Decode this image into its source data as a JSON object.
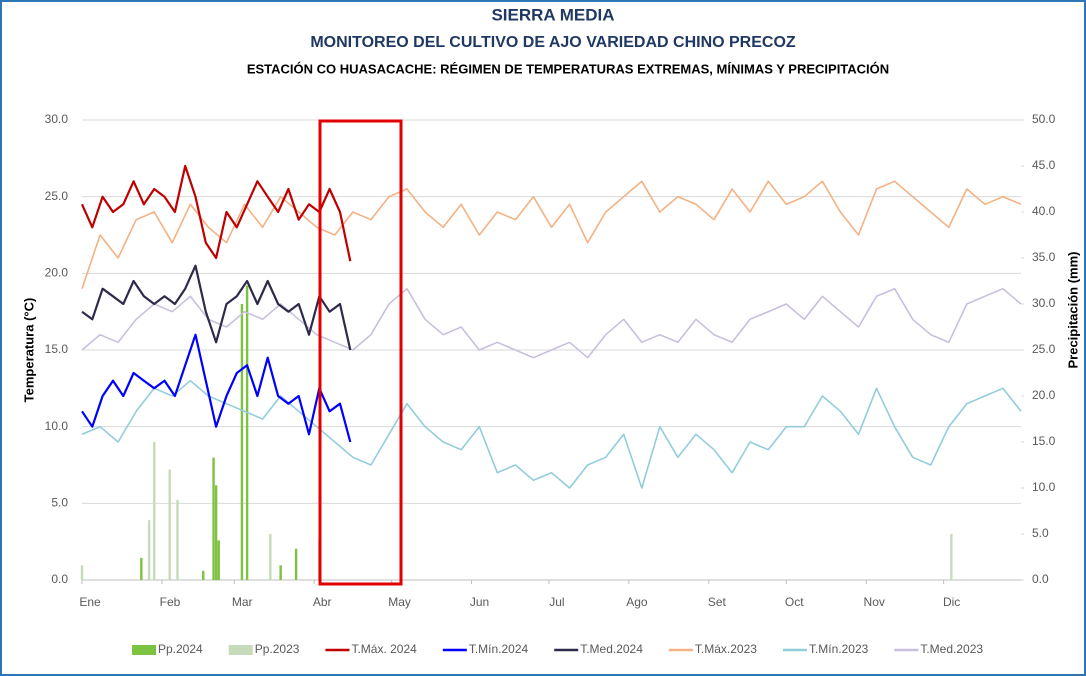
{
  "chart_data": {
    "type": "line",
    "title": "SIERRA MEDIA",
    "subtitle": "MONITOREO DEL CULTIVO DE AJO VARIEDAD CHINO PRECOZ",
    "subtitle2": "ESTACIÓN CO HUASACACHE: RÉGIMEN DE TEMPERATURAS EXTREMAS, MÍNIMAS Y PRECIPITACIÓN",
    "ylabel": "Temperatura (°C)",
    "y2label": "Precipitación (mm)",
    "xlim": [
      1,
      365
    ],
    "xticks": [
      {
        "value": 1,
        "label": "Ene"
      },
      {
        "value": 32,
        "label": "Feb"
      },
      {
        "value": 60,
        "label": "Mar"
      },
      {
        "value": 91,
        "label": "Abr"
      },
      {
        "value": 121,
        "label": "May"
      },
      {
        "value": 152,
        "label": "Jun"
      },
      {
        "value": 182,
        "label": "Jul"
      },
      {
        "value": 213,
        "label": "Ago"
      },
      {
        "value": 244,
        "label": "Set"
      },
      {
        "value": 274,
        "label": "Oct"
      },
      {
        "value": 305,
        "label": "Nov"
      },
      {
        "value": 335,
        "label": "Dic"
      }
    ],
    "ylim": [
      0,
      30
    ],
    "yticks": [
      {
        "value": 0,
        "label": "0.0"
      },
      {
        "value": 5,
        "label": "5.0"
      },
      {
        "value": 10,
        "label": "10.0"
      },
      {
        "value": 15,
        "label": "15.0"
      },
      {
        "value": 20,
        "label": "20.0"
      },
      {
        "value": 25,
        "label": "25.0"
      },
      {
        "value": 30,
        "label": "30.0"
      }
    ],
    "y2lim": [
      0,
      50
    ],
    "y2ticks": [
      {
        "value": 0,
        "label": "0.0"
      },
      {
        "value": 5,
        "label": "5.0"
      },
      {
        "value": 10,
        "label": "10.0"
      },
      {
        "value": 15,
        "label": "15.0"
      },
      {
        "value": 20,
        "label": "20.0"
      },
      {
        "value": 25,
        "label": "25.0"
      },
      {
        "value": 30,
        "label": "30.0"
      },
      {
        "value": 35,
        "label": "35.0"
      },
      {
        "value": 40,
        "label": "40.0"
      },
      {
        "value": 45,
        "label": "45.0"
      },
      {
        "value": 50,
        "label": "50.0"
      }
    ],
    "grid": true,
    "legend": "bottom",
    "series": [
      {
        "name": "Pp.2024",
        "type": "bar",
        "axis": "y2",
        "color": "#7dc242",
        "x": [
          24,
          48,
          52,
          53,
          54,
          63,
          65,
          78,
          84
        ],
        "values": [
          2.4,
          1,
          13.3,
          10.3,
          4.3,
          30,
          32,
          1.6,
          3.4
        ]
      },
      {
        "name": "Pp.2023",
        "type": "bar",
        "axis": "y2",
        "color": "#c5dbb9",
        "x": [
          1,
          27,
          29,
          35,
          38,
          74,
          93,
          338
        ],
        "values": [
          1.6,
          6.5,
          15,
          12,
          8.7,
          5,
          4.3,
          5
        ]
      },
      {
        "name": "T.Máx. 2024",
        "type": "line",
        "color": "#c00000",
        "x": [
          1,
          5,
          9,
          13,
          17,
          21,
          25,
          29,
          33,
          37,
          41,
          45,
          49,
          53,
          57,
          61,
          65,
          69,
          73,
          77,
          81,
          85,
          89,
          93,
          97,
          101,
          105
        ],
        "values": [
          24.5,
          23,
          25,
          24,
          24.5,
          26,
          24.5,
          25.5,
          25,
          24,
          27,
          25,
          22,
          21,
          24,
          23,
          24.5,
          26,
          25,
          24,
          25.5,
          23.5,
          24.5,
          24,
          25.5,
          24,
          20.8
        ]
      },
      {
        "name": "T.Mín.2024",
        "type": "line",
        "color": "#0000ff",
        "x": [
          1,
          5,
          9,
          13,
          17,
          21,
          25,
          29,
          33,
          37,
          41,
          45,
          49,
          53,
          57,
          61,
          65,
          69,
          73,
          77,
          81,
          85,
          89,
          93,
          97,
          101,
          105
        ],
        "values": [
          11,
          10,
          12,
          13,
          12,
          13.5,
          13,
          12.5,
          13,
          12,
          14,
          16,
          13,
          10,
          12,
          13.5,
          14,
          12,
          14.5,
          12,
          11.5,
          12,
          9.5,
          12.5,
          11,
          11.5,
          9
        ]
      },
      {
        "name": "T.Med.2024",
        "type": "line",
        "color": "#2e2a4a",
        "x": [
          1,
          5,
          9,
          13,
          17,
          21,
          25,
          29,
          33,
          37,
          41,
          45,
          49,
          53,
          57,
          61,
          65,
          69,
          73,
          77,
          81,
          85,
          89,
          93,
          97,
          101,
          105
        ],
        "values": [
          17.5,
          17,
          19,
          18.5,
          18,
          19.5,
          18.5,
          18,
          18.5,
          18,
          19,
          20.5,
          17.5,
          15.5,
          18,
          18.5,
          19.5,
          18,
          19.5,
          18,
          17.5,
          18,
          16,
          18.5,
          17.5,
          18,
          15
        ]
      },
      {
        "name": "T.Máx.2023",
        "type": "line",
        "color": "#f4b183",
        "x": [
          1,
          8,
          15,
          22,
          29,
          36,
          43,
          50,
          57,
          64,
          71,
          78,
          85,
          92,
          99,
          106,
          113,
          120,
          127,
          134,
          141,
          148,
          155,
          162,
          169,
          176,
          183,
          190,
          197,
          204,
          211,
          218,
          225,
          232,
          239,
          246,
          253,
          260,
          267,
          274,
          281,
          288,
          295,
          302,
          309,
          316,
          323,
          330,
          337,
          344,
          351,
          358,
          365
        ],
        "values": [
          19,
          22.5,
          21,
          23.5,
          24,
          22,
          24.5,
          23,
          22,
          24.5,
          23,
          25,
          24,
          23,
          22.5,
          24,
          23.5,
          25,
          25.5,
          24,
          23,
          24.5,
          22.5,
          24,
          23.5,
          25,
          23,
          24.5,
          22,
          24,
          25,
          26,
          24,
          25,
          24.5,
          23.5,
          25.5,
          24,
          26,
          24.5,
          25,
          26,
          24,
          22.5,
          25.5,
          26,
          25,
          24,
          23,
          25.5,
          24.5,
          25,
          24.5
        ]
      },
      {
        "name": "T.Mín.2023",
        "type": "line",
        "color": "#92cddc",
        "x": [
          1,
          8,
          15,
          22,
          29,
          36,
          43,
          50,
          57,
          64,
          71,
          78,
          85,
          92,
          99,
          106,
          113,
          120,
          127,
          134,
          141,
          148,
          155,
          162,
          169,
          176,
          183,
          190,
          197,
          204,
          211,
          218,
          225,
          232,
          239,
          246,
          253,
          260,
          267,
          274,
          281,
          288,
          295,
          302,
          309,
          316,
          323,
          330,
          337,
          344,
          351,
          358,
          365
        ],
        "values": [
          9.5,
          10,
          9,
          11,
          12.5,
          12,
          13,
          12,
          11.5,
          11,
          10.5,
          12,
          11,
          10,
          9,
          8,
          7.5,
          9.5,
          11.5,
          10,
          9,
          8.5,
          10,
          7,
          7.5,
          6.5,
          7,
          6,
          7.5,
          8,
          9.5,
          6,
          10,
          8,
          9.5,
          8.5,
          7,
          9,
          8.5,
          10,
          10,
          12,
          11,
          9.5,
          12.5,
          10,
          8,
          7.5,
          10,
          11.5,
          12,
          12.5,
          11
        ]
      },
      {
        "name": "T.Med.2023",
        "type": "line",
        "color": "#c9bfdd",
        "x": [
          1,
          8,
          15,
          22,
          29,
          36,
          43,
          50,
          57,
          64,
          71,
          78,
          85,
          92,
          99,
          106,
          113,
          120,
          127,
          134,
          141,
          148,
          155,
          162,
          169,
          176,
          183,
          190,
          197,
          204,
          211,
          218,
          225,
          232,
          239,
          246,
          253,
          260,
          267,
          274,
          281,
          288,
          295,
          302,
          309,
          316,
          323,
          330,
          337,
          344,
          351,
          358,
          365
        ],
        "values": [
          15,
          16,
          15.5,
          17,
          18,
          17.5,
          18.5,
          17,
          16.5,
          17.5,
          17,
          18,
          17,
          16,
          15.5,
          15,
          16,
          18,
          19,
          17,
          16,
          16.5,
          15,
          15.5,
          15,
          14.5,
          15,
          15.5,
          14.5,
          16,
          17,
          15.5,
          16,
          15.5,
          17,
          16,
          15.5,
          17,
          17.5,
          18,
          17,
          18.5,
          17.5,
          16.5,
          18.5,
          19,
          17,
          16,
          15.5,
          18,
          18.5,
          19,
          18
        ]
      }
    ]
  }
}
